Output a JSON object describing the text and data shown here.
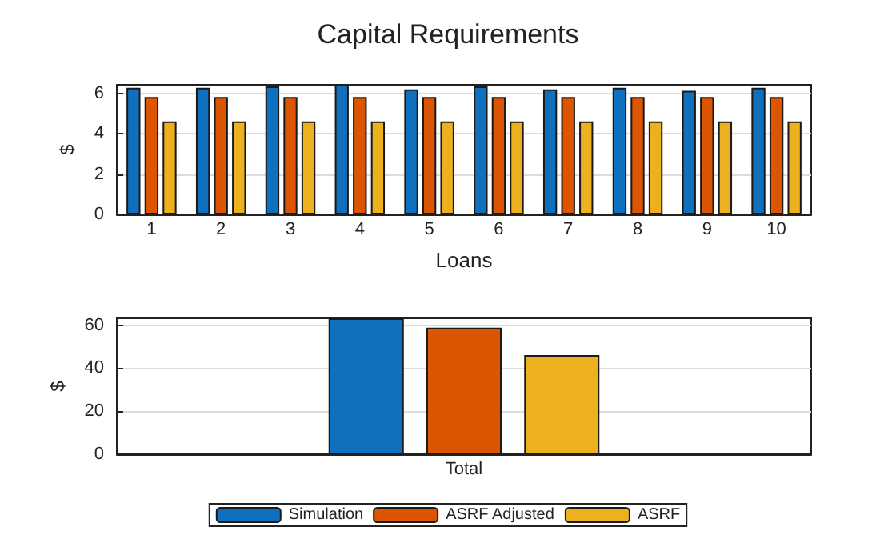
{
  "chart_data": [
    {
      "type": "bar",
      "title": "Capital Requirements",
      "xlabel": "Loans",
      "ylabel": "$",
      "categories": [
        "1",
        "2",
        "3",
        "4",
        "5",
        "6",
        "7",
        "8",
        "9",
        "10"
      ],
      "series": [
        {
          "color": "#1170be",
          "values": [
            6.28,
            6.28,
            6.35,
            6.43,
            6.2,
            6.35,
            6.2,
            6.28,
            6.13,
            6.28
          ]
        },
        {
          "color": "#dc5500",
          "values": [
            5.82,
            5.82,
            5.82,
            5.82,
            5.82,
            5.82,
            5.82,
            5.82,
            5.82,
            5.82
          ]
        },
        {
          "color": "#edb120",
          "values": [
            4.61,
            4.61,
            4.61,
            4.61,
            4.61,
            4.61,
            4.61,
            4.61,
            4.61,
            4.61
          ]
        }
      ],
      "ylim": [
        0,
        6.43
      ],
      "yticks": [
        0,
        2,
        4,
        6
      ],
      "grid": "y",
      "legend": false
    },
    {
      "type": "bar",
      "ylabel": "$",
      "categories": [
        "Total"
      ],
      "series": [
        {
          "name": "Simulation",
          "color": "#1170be",
          "values": [
            63.2
          ]
        },
        {
          "name": "ASRF Adjusted",
          "color": "#dc5500",
          "values": [
            58.8
          ]
        },
        {
          "name": "ASRF",
          "color": "#edb120",
          "values": [
            46.1
          ]
        }
      ],
      "ylim": [
        0,
        63.2
      ],
      "yticks": [
        0,
        20,
        40,
        60
      ],
      "grid": "y",
      "legend": "bottom"
    }
  ]
}
